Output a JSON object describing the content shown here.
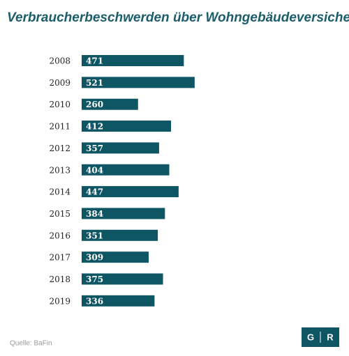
{
  "chart_data": {
    "type": "barh",
    "title": "Verbraucherbeschwerden über Wohngebäudeversicherungen",
    "categories": [
      "2008",
      "2009",
      "2010",
      "2011",
      "2012",
      "2013",
      "2014",
      "2015",
      "2016",
      "2017",
      "2018",
      "2019"
    ],
    "values": [
      471,
      521,
      260,
      412,
      357,
      404,
      447,
      384,
      351,
      309,
      375,
      336
    ],
    "color": "#0f5664",
    "xlim": [
      0,
      560
    ],
    "source": "Quelle: BaFin"
  },
  "logo": {
    "left": "G",
    "right": "R"
  }
}
